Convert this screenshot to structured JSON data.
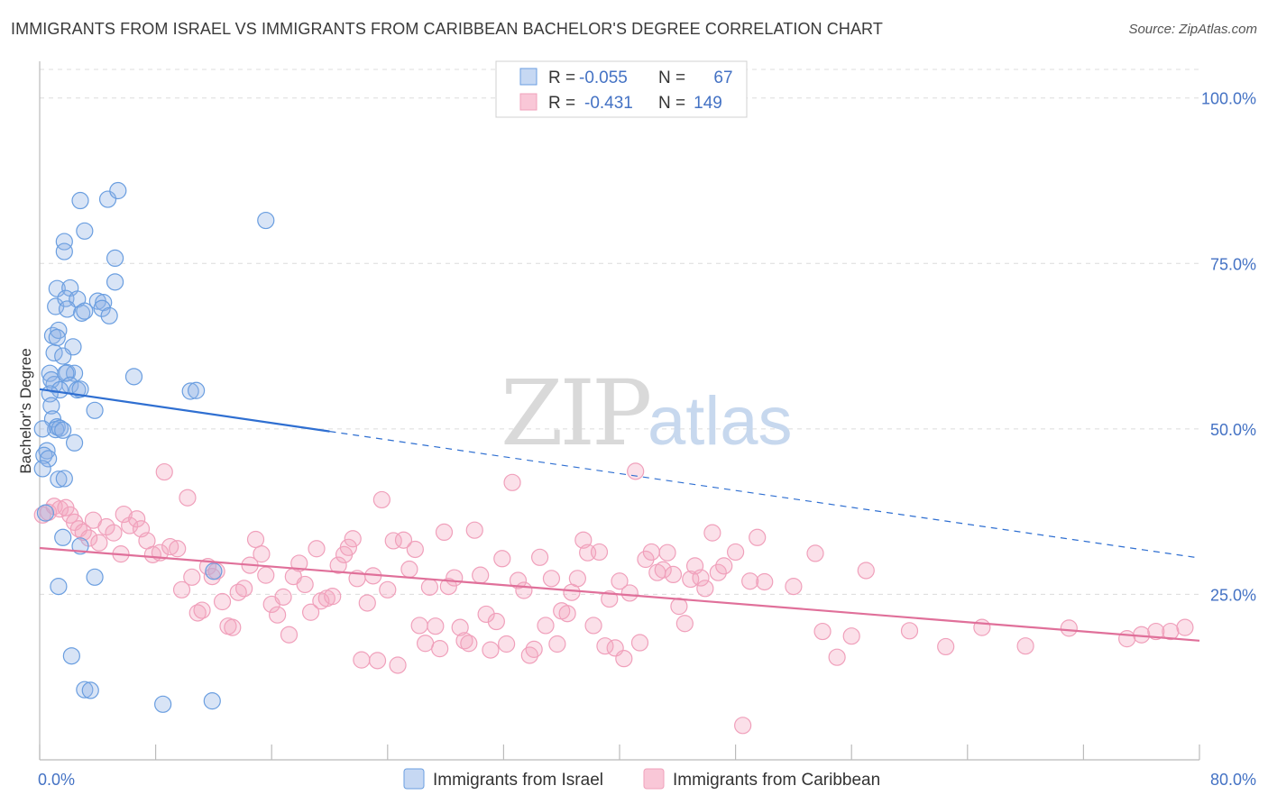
{
  "title": "IMMIGRANTS FROM ISRAEL VS IMMIGRANTS FROM CARIBBEAN BACHELOR'S DEGREE CORRELATION CHART",
  "source": "Source: ZipAtlas.com",
  "watermark": {
    "zip": "ZIP",
    "atlas": "atlas"
  },
  "legend": {
    "rows": [
      {
        "r_label": "R =",
        "r_value": "-0.055",
        "n_label": "N =",
        "n_value": "67",
        "color": "#8fb3e6"
      },
      {
        "r_label": "R =",
        "r_value": "-0.431",
        "n_label": "N =",
        "n_value": "149",
        "color": "#f4a7c0"
      }
    ]
  },
  "bottom_legend": {
    "israel": "Immigrants from Israel",
    "caribbean": "Immigrants from Caribbean"
  },
  "chart_data": {
    "type": "scatter",
    "title": "IMMIGRANTS FROM ISRAEL VS IMMIGRANTS FROM CARIBBEAN BACHELOR'S DEGREE CORRELATION CHART",
    "xlabel": "",
    "ylabel": "Bachelor's Degree",
    "xlim": [
      0,
      80
    ],
    "ylim": [
      0,
      105
    ],
    "x_tick_labels": [
      "0.0%",
      "80.0%"
    ],
    "y_ticks": [
      25,
      50,
      75,
      100
    ],
    "y_tick_labels": [
      "25.0%",
      "50.0%",
      "75.0%",
      "100.0%"
    ],
    "grid": true,
    "legend_position": "top-center",
    "colors": {
      "israel": "#6a9ee0",
      "israel_line": "#2f6fd1",
      "caribbean": "#f0a0bb",
      "caribbean_line": "#e0709a"
    },
    "series": [
      {
        "name": "Immigrants from Israel",
        "r": -0.055,
        "n": 67,
        "trend": {
          "x0": 0,
          "y0": 56,
          "x_solid_end": 20,
          "x1": 80,
          "y1": 30.5
        },
        "points": [
          [
            2.8,
            84.5
          ],
          [
            4.7,
            84.7
          ],
          [
            5.4,
            86
          ],
          [
            1.7,
            78.3
          ],
          [
            3.1,
            79.9
          ],
          [
            1.7,
            76.8
          ],
          [
            5.2,
            75.8
          ],
          [
            15.6,
            81.5
          ],
          [
            1.2,
            71.2
          ],
          [
            2.1,
            71.3
          ],
          [
            5.2,
            72.2
          ],
          [
            1.1,
            68.5
          ],
          [
            1.8,
            69.7
          ],
          [
            2.6,
            69.6
          ],
          [
            1.9,
            68.1
          ],
          [
            2.9,
            67.5
          ],
          [
            3.1,
            67.8
          ],
          [
            4.0,
            69.3
          ],
          [
            4.4,
            69.1
          ],
          [
            4.3,
            68.2
          ],
          [
            4.8,
            67.1
          ],
          [
            0.9,
            64.1
          ],
          [
            1.3,
            64.9
          ],
          [
            1.2,
            63.8
          ],
          [
            2.3,
            62.4
          ],
          [
            1.0,
            61.5
          ],
          [
            1.6,
            61.0
          ],
          [
            0.7,
            58.4
          ],
          [
            1.9,
            58.5
          ],
          [
            2.4,
            58.4
          ],
          [
            1.8,
            58.4
          ],
          [
            1.0,
            56.7
          ],
          [
            2.1,
            56.6
          ],
          [
            0.8,
            57.4
          ],
          [
            1.4,
            55.9
          ],
          [
            2.6,
            55.9
          ],
          [
            2.8,
            56.0
          ],
          [
            0.7,
            55.3
          ],
          [
            6.5,
            57.9
          ],
          [
            10.4,
            55.7
          ],
          [
            10.8,
            55.8
          ],
          [
            0.8,
            53.5
          ],
          [
            3.8,
            52.8
          ],
          [
            0.9,
            51.5
          ],
          [
            1.2,
            50.3
          ],
          [
            1.1,
            49.9
          ],
          [
            1.4,
            50.1
          ],
          [
            0.2,
            50.0
          ],
          [
            1.6,
            49.8
          ],
          [
            2.4,
            47.9
          ],
          [
            0.5,
            46.7
          ],
          [
            0.3,
            46.0
          ],
          [
            0.6,
            45.5
          ],
          [
            1.3,
            42.4
          ],
          [
            1.7,
            42.5
          ],
          [
            0.4,
            37.3
          ],
          [
            1.6,
            33.6
          ],
          [
            2.8,
            32.3
          ],
          [
            1.3,
            26.2
          ],
          [
            3.8,
            27.6
          ],
          [
            2.2,
            15.7
          ],
          [
            3.1,
            10.6
          ],
          [
            3.5,
            10.5
          ],
          [
            8.5,
            8.4
          ],
          [
            11.9,
            8.9
          ],
          [
            0.2,
            44.0
          ],
          [
            12.0,
            28.5
          ]
        ]
      },
      {
        "name": "Immigrants from Caribbean",
        "r": -0.431,
        "n": 149,
        "trend": {
          "x0": 0,
          "y0": 32,
          "x1": 80,
          "y1": 18
        },
        "points": [
          [
            0.2,
            37.0
          ],
          [
            0.6,
            37.4
          ],
          [
            1.0,
            38.3
          ],
          [
            1.4,
            37.9
          ],
          [
            1.8,
            38.1
          ],
          [
            2.1,
            37.0
          ],
          [
            2.4,
            35.9
          ],
          [
            2.7,
            34.9
          ],
          [
            3.0,
            34.4
          ],
          [
            3.4,
            33.5
          ],
          [
            3.7,
            36.2
          ],
          [
            4.1,
            32.8
          ],
          [
            4.6,
            35.2
          ],
          [
            5.1,
            34.3
          ],
          [
            5.6,
            31.1
          ],
          [
            5.8,
            37.1
          ],
          [
            6.2,
            35.4
          ],
          [
            6.7,
            36.4
          ],
          [
            7.0,
            34.9
          ],
          [
            7.4,
            33.1
          ],
          [
            7.8,
            31.0
          ],
          [
            8.3,
            31.3
          ],
          [
            8.6,
            43.5
          ],
          [
            9.0,
            32.2
          ],
          [
            9.5,
            31.9
          ],
          [
            9.8,
            25.7
          ],
          [
            10.2,
            39.6
          ],
          [
            10.5,
            27.6
          ],
          [
            10.9,
            22.2
          ],
          [
            11.2,
            22.6
          ],
          [
            11.6,
            29.2
          ],
          [
            11.9,
            27.7
          ],
          [
            12.2,
            28.5
          ],
          [
            12.6,
            23.9
          ],
          [
            13.0,
            20.2
          ],
          [
            13.3,
            20.0
          ],
          [
            13.7,
            25.3
          ],
          [
            14.1,
            25.9
          ],
          [
            14.5,
            29.4
          ],
          [
            14.9,
            33.3
          ],
          [
            15.3,
            31.1
          ],
          [
            15.6,
            27.9
          ],
          [
            16.0,
            23.5
          ],
          [
            16.4,
            21.9
          ],
          [
            16.8,
            24.6
          ],
          [
            17.2,
            18.9
          ],
          [
            17.5,
            27.7
          ],
          [
            17.9,
            29.7
          ],
          [
            18.3,
            26.5
          ],
          [
            18.7,
            22.3
          ],
          [
            19.1,
            31.9
          ],
          [
            19.4,
            24.0
          ],
          [
            19.8,
            24.4
          ],
          [
            20.2,
            24.7
          ],
          [
            20.6,
            29.4
          ],
          [
            21.0,
            31.0
          ],
          [
            21.3,
            32.1
          ],
          [
            21.6,
            33.4
          ],
          [
            21.9,
            27.4
          ],
          [
            22.2,
            15.1
          ],
          [
            22.6,
            23.7
          ],
          [
            23.0,
            27.8
          ],
          [
            23.3,
            15.0
          ],
          [
            23.6,
            39.3
          ],
          [
            24.0,
            25.7
          ],
          [
            24.4,
            33.1
          ],
          [
            24.7,
            14.3
          ],
          [
            25.1,
            33.2
          ],
          [
            25.5,
            28.8
          ],
          [
            25.9,
            31.8
          ],
          [
            26.2,
            20.3
          ],
          [
            26.6,
            17.6
          ],
          [
            26.9,
            26.1
          ],
          [
            27.3,
            20.2
          ],
          [
            27.6,
            16.8
          ],
          [
            27.9,
            34.4
          ],
          [
            28.2,
            26.2
          ],
          [
            28.6,
            27.5
          ],
          [
            29.0,
            20.0
          ],
          [
            29.3,
            18.0
          ],
          [
            29.6,
            17.6
          ],
          [
            30.0,
            34.7
          ],
          [
            30.4,
            27.9
          ],
          [
            30.8,
            22.0
          ],
          [
            31.1,
            16.6
          ],
          [
            31.5,
            20.9
          ],
          [
            31.9,
            30.4
          ],
          [
            32.2,
            17.5
          ],
          [
            32.6,
            41.9
          ],
          [
            33.0,
            27.1
          ],
          [
            33.4,
            25.6
          ],
          [
            33.8,
            15.8
          ],
          [
            34.1,
            16.7
          ],
          [
            34.5,
            30.6
          ],
          [
            34.9,
            20.3
          ],
          [
            35.3,
            27.4
          ],
          [
            35.7,
            17.5
          ],
          [
            36.0,
            22.5
          ],
          [
            36.4,
            22.1
          ],
          [
            36.7,
            25.3
          ],
          [
            37.1,
            27.4
          ],
          [
            37.5,
            33.2
          ],
          [
            37.8,
            31.3
          ],
          [
            38.2,
            20.3
          ],
          [
            38.6,
            31.4
          ],
          [
            39.0,
            17.2
          ],
          [
            39.3,
            24.3
          ],
          [
            39.7,
            16.9
          ],
          [
            40.0,
            27.0
          ],
          [
            40.3,
            15.3
          ],
          [
            40.7,
            25.2
          ],
          [
            41.1,
            43.6
          ],
          [
            41.4,
            17.7
          ],
          [
            41.8,
            30.3
          ],
          [
            42.2,
            31.4
          ],
          [
            42.6,
            28.3
          ],
          [
            43.0,
            28.7
          ],
          [
            43.3,
            31.3
          ],
          [
            43.7,
            28.0
          ],
          [
            44.1,
            23.2
          ],
          [
            44.5,
            20.6
          ],
          [
            44.9,
            27.3
          ],
          [
            45.2,
            29.3
          ],
          [
            45.6,
            27.5
          ],
          [
            45.9,
            25.9
          ],
          [
            46.4,
            34.3
          ],
          [
            46.8,
            28.3
          ],
          [
            47.2,
            29.3
          ],
          [
            48.0,
            31.4
          ],
          [
            49.0,
            27.0
          ],
          [
            49.5,
            33.6
          ],
          [
            50.0,
            26.9
          ],
          [
            52.0,
            26.2
          ],
          [
            53.5,
            31.2
          ],
          [
            54.0,
            19.4
          ],
          [
            55.0,
            15.5
          ],
          [
            56.0,
            18.7
          ],
          [
            57.0,
            28.6
          ],
          [
            60.0,
            19.5
          ],
          [
            62.5,
            17.1
          ],
          [
            65.0,
            20.0
          ],
          [
            68.0,
            17.2
          ],
          [
            71.0,
            19.9
          ],
          [
            75.0,
            18.3
          ],
          [
            76.0,
            18.9
          ],
          [
            77.0,
            19.4
          ],
          [
            78.0,
            19.4
          ],
          [
            79.0,
            20.0
          ],
          [
            48.5,
            5.2
          ]
        ]
      }
    ]
  }
}
